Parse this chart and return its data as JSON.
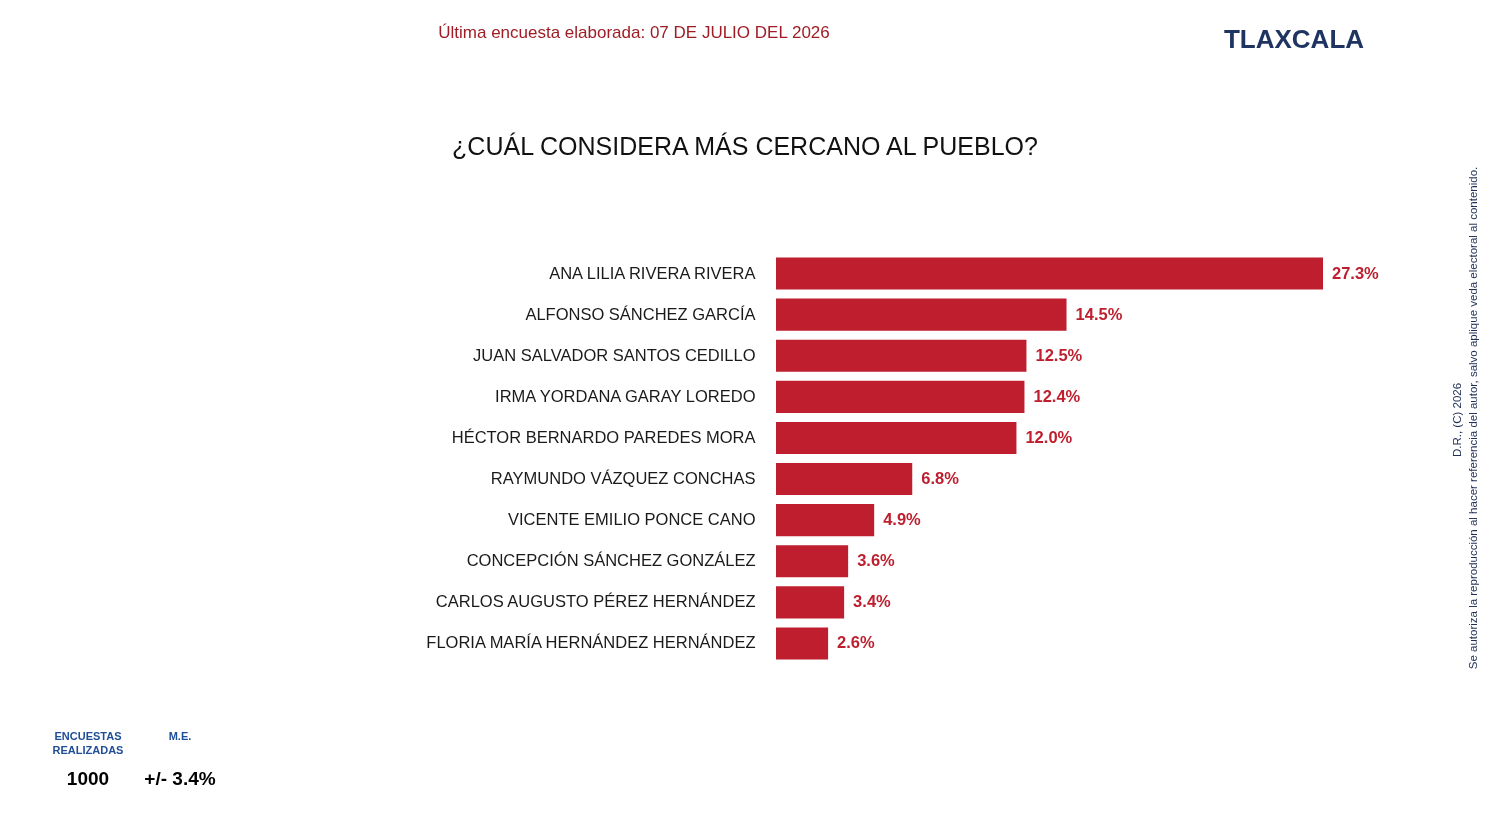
{
  "chart_data": {
    "type": "bar",
    "orientation": "horizontal",
    "title": "¿CUÁL CONSIDERA MÁS CERCANO AL PUEBLO?",
    "categories": [
      "ANA LILIA RIVERA RIVERA",
      "ALFONSO SÁNCHEZ GARCÍA",
      "JUAN SALVADOR SANTOS CEDILLO",
      "IRMA YORDANA GARAY LOREDO",
      "HÉCTOR BERNARDO PAREDES MORA",
      "RAYMUNDO VÁZQUEZ CONCHAS",
      "VICENTE EMILIO PONCE CANO",
      "CONCEPCIÓN SÁNCHEZ GONZÁLEZ",
      "CARLOS AUGUSTO PÉREZ HERNÁNDEZ",
      "FLORIA MARÍA HERNÁNDEZ HERNÁNDEZ"
    ],
    "values": [
      27.3,
      14.5,
      12.5,
      12.4,
      12.0,
      6.8,
      4.9,
      3.6,
      3.4,
      2.6
    ],
    "value_labels": [
      "27.3%",
      "14.5%",
      "12.5%",
      "12.4%",
      "12.0%",
      "6.8%",
      "4.9%",
      "3.6%",
      "3.4%",
      "2.6%"
    ],
    "color": "#be1e2d",
    "tick_labels": "y",
    "annotations": [
      "Última encuesta elaborada: 07 DE JULIO DEL 2026",
      "TLAXCALA",
      "ENCUESTAS REALIZADAS",
      "M.E.",
      "1000",
      "+/- 3.4%",
      "D.R., (C) 2026",
      "Se autoriza la reproducción al hacer referencia del autor, salvo aplique veda electoral al contenido."
    ]
  }
}
